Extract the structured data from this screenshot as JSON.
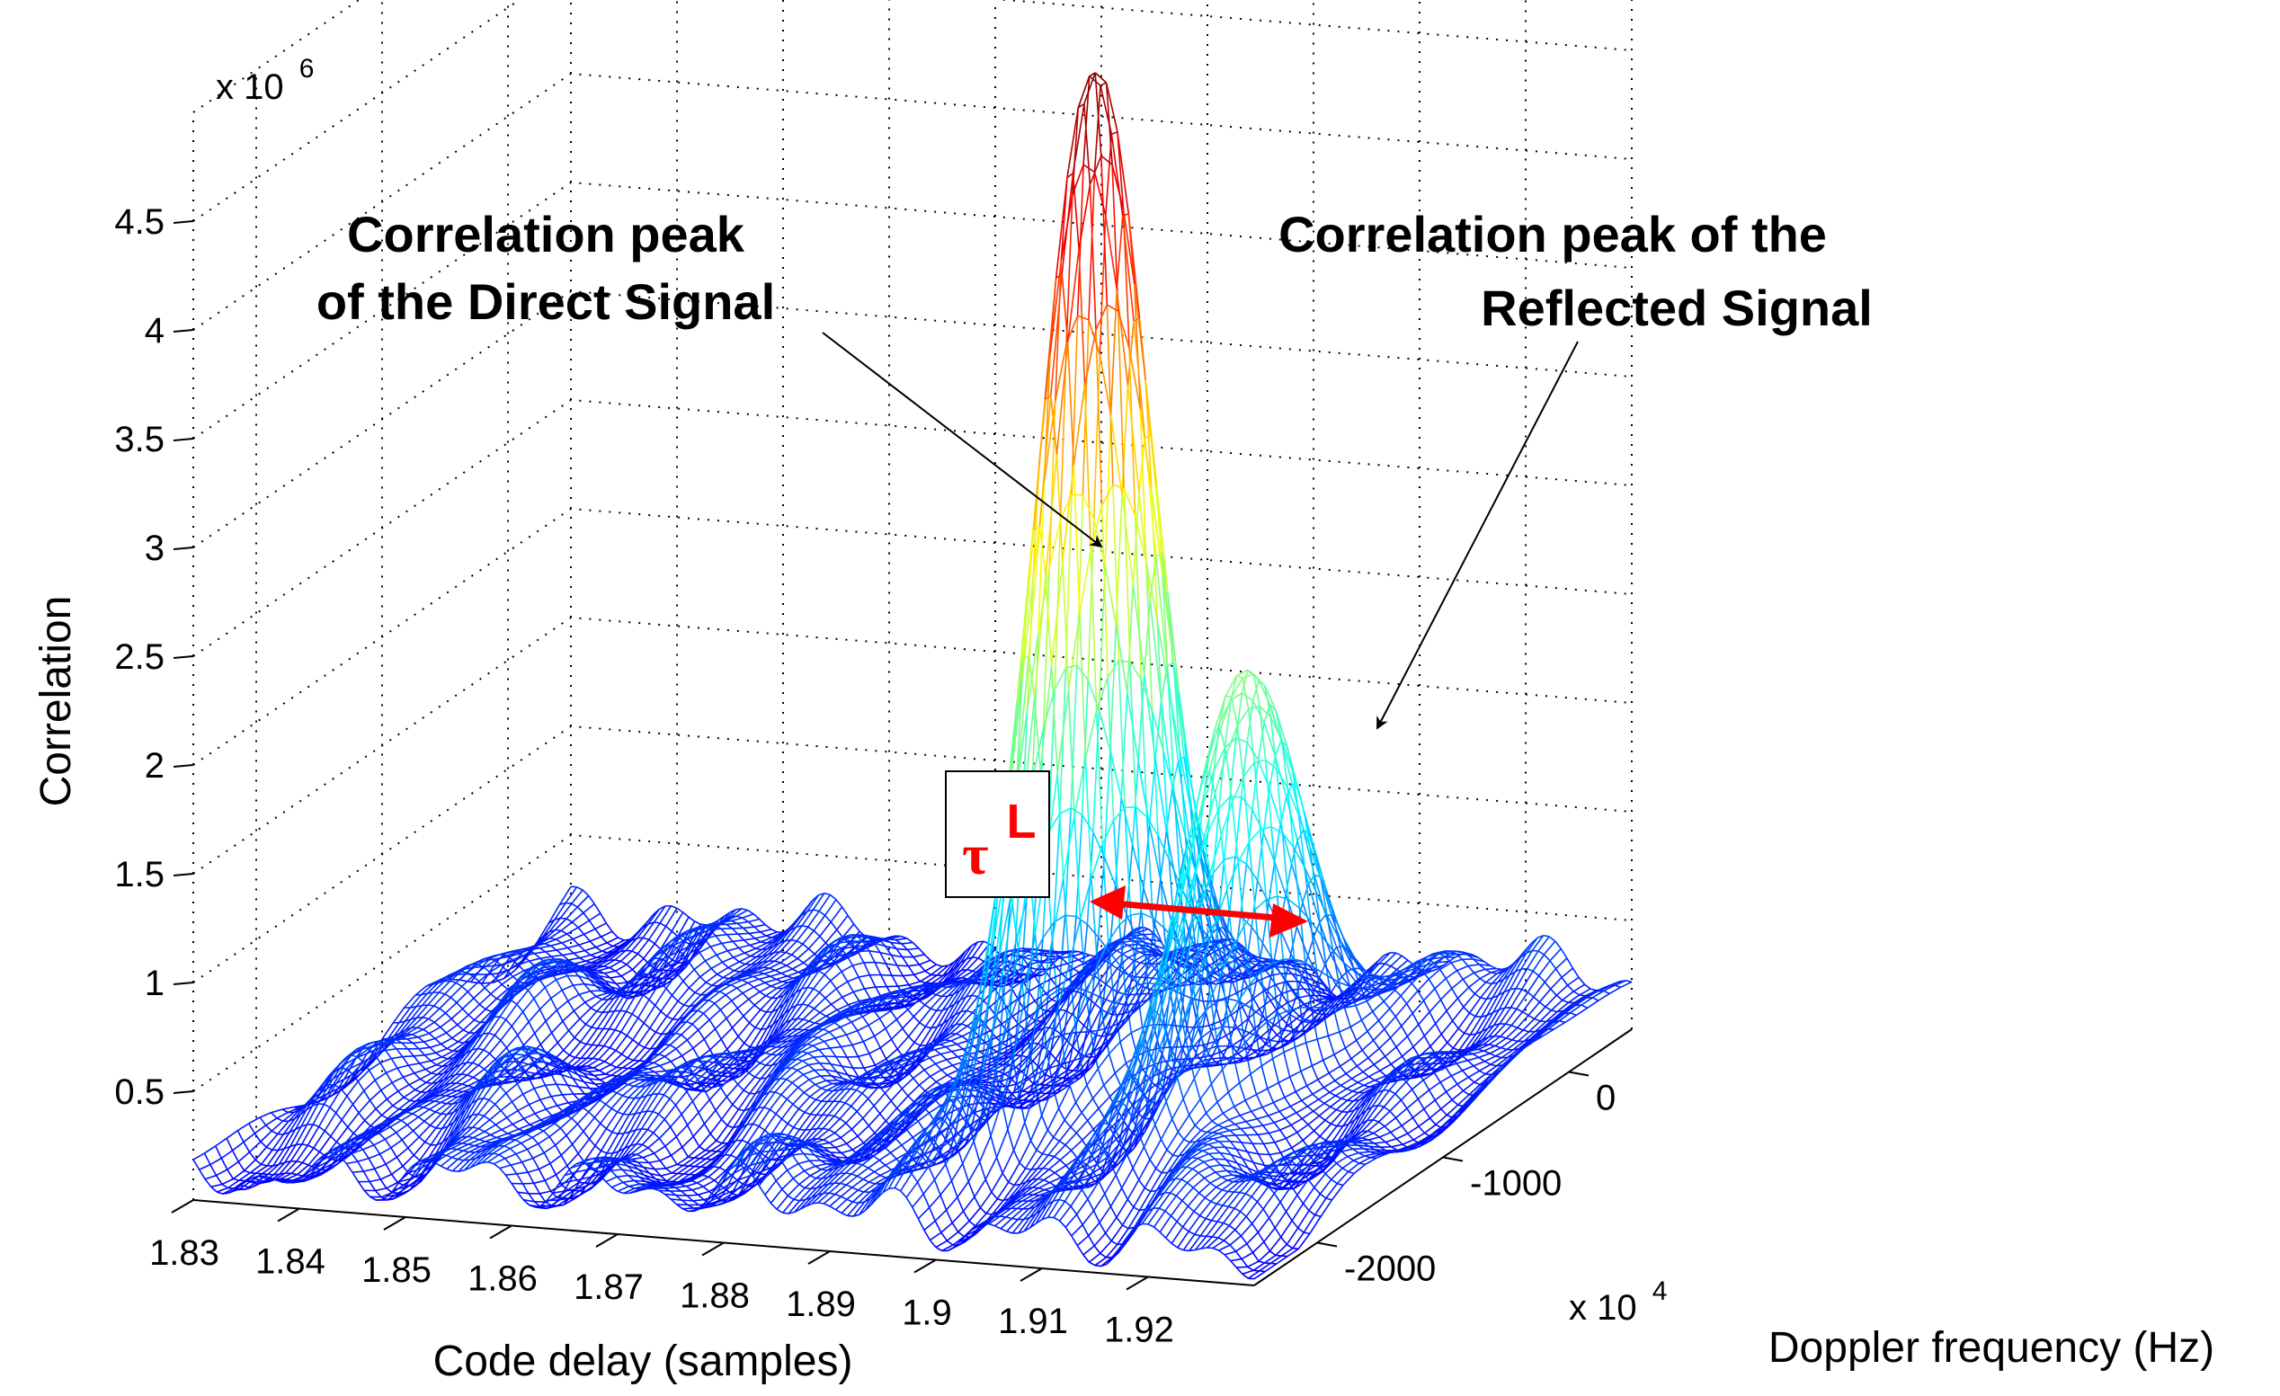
{
  "chart_data": {
    "type": "surface",
    "title": "",
    "xlabel": "Code delay (samples)",
    "ylabel": "Doppler frequency (Hz)",
    "zlabel": "Correlation",
    "x_ticks": [
      "1.83",
      "1.84",
      "1.85",
      "1.86",
      "1.87",
      "1.88",
      "1.89",
      "1.9",
      "1.91",
      "1.92"
    ],
    "x_tick_values": [
      18300,
      18400,
      18500,
      18600,
      18700,
      18800,
      18900,
      19000,
      19100,
      19200
    ],
    "x_multiplier": "x 10",
    "x_exponent": "4",
    "xlim": [
      18300,
      19300
    ],
    "y_ticks": [
      "-2000",
      "-1000",
      "0"
    ],
    "y_tick_values": [
      -2000,
      -1000,
      0
    ],
    "ylim": [
      -2500,
      500
    ],
    "z_ticks": [
      "0.5",
      "1",
      "1.5",
      "2",
      "2.5",
      "3",
      "3.5",
      "4",
      "4.5"
    ],
    "z_tick_values": [
      0.5,
      1,
      1.5,
      2,
      2.5,
      3,
      3.5,
      4,
      4.5
    ],
    "z_multiplier": "x 10",
    "z_exponent": "6",
    "zlim": [
      0,
      5
    ],
    "peaks": [
      {
        "name": "Correlation peak of the Direct Signal",
        "code_delay": 18970,
        "doppler": -1000,
        "correlation": 4.85
      },
      {
        "name": "Correlation peak of the Reflected Signal",
        "code_delay": 19110,
        "doppler": -1000,
        "correlation": 2.05
      }
    ],
    "annotations": {
      "direct_line1": "Correlation peak",
      "direct_line2": "of the Direct Signal",
      "reflected_line1": "Correlation peak of the",
      "reflected_line2": "Reflected Signal",
      "tau_symbol": "τ",
      "tau_superscript": "L"
    },
    "colors": {
      "mesh_low": "#1a1aa0",
      "arrow": "#ff0000",
      "tau": "#ff0000"
    }
  }
}
